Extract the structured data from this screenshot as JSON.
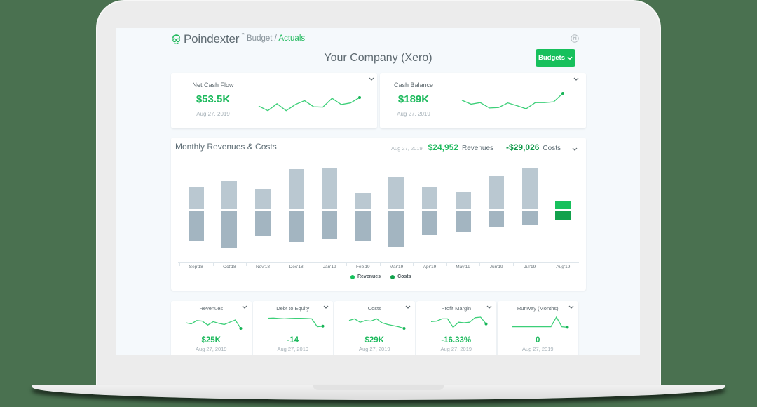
{
  "app": {
    "logo_text": "Poindexter",
    "logo_tm": "™",
    "breadcrumb": {
      "parent": "Budget",
      "separator": " / ",
      "current": "Actuals"
    },
    "page_title": "Your Company (Xero)",
    "budgets_button": "Budgets",
    "accent_color": "#17c05c"
  },
  "top_cards": [
    {
      "title": "Net Cash Flow",
      "value": "$53.5K",
      "date": "Aug 27, 2019",
      "sparkline": [
        0.45,
        0.15,
        0.6,
        0.15,
        0.55,
        0.8,
        0.4,
        0.38,
        0.95,
        0.55,
        0.65,
        1.0
      ]
    },
    {
      "title": "Cash Balance",
      "value": "$189K",
      "date": "Aug 27, 2019",
      "sparkline": [
        0.55,
        0.3,
        0.4,
        0.05,
        0.08,
        0.38,
        0.2,
        0.0,
        0.4,
        0.4,
        0.45,
        1.0
      ]
    }
  ],
  "main_chart_header": {
    "title": "Monthly Revenues & Costs",
    "date": "Aug 27, 2019",
    "revenues_value": "$24,952",
    "revenues_label": "Revenues",
    "costs_value": "-$29,026",
    "costs_label": "Costs"
  },
  "chart_data": {
    "type": "bar",
    "title": "Monthly Revenues & Costs",
    "categories": [
      "Sep'18",
      "Oct'18",
      "Nov'18",
      "Dec'18",
      "Jan'19",
      "Feb'19",
      "Mar'19",
      "Apr'19",
      "May'19",
      "Jun'19",
      "Jul'19",
      "Aug'19"
    ],
    "series": [
      {
        "name": "Revenues",
        "color": "#17c05c",
        "values": [
          32,
          41,
          30,
          58,
          59,
          24,
          47,
          32,
          26,
          48,
          60,
          12
        ]
      },
      {
        "name": "Costs",
        "color": "#12a14c",
        "values": [
          -43,
          -54,
          -36,
          -45,
          -41,
          -44,
          -52,
          -35,
          -30,
          -24,
          -21,
          -13
        ]
      }
    ],
    "bar_colors": {
      "revenues_past": "#bac8d1",
      "costs_past": "#a3b5c1",
      "revenues_current": "#17c05c",
      "costs_current": "#12a14c"
    },
    "xlabel": "",
    "ylabel": "",
    "grid": false,
    "legend_position": "bottom",
    "units": "relative (no y-axis shown)"
  },
  "legend": [
    {
      "label": "Revenues",
      "color": "#17c05c"
    },
    {
      "label": "Costs",
      "color": "#12a14c"
    }
  ],
  "bottom_cards": [
    {
      "title": "Revenues",
      "value": "$25K",
      "date": "Aug 27, 2019",
      "sparkline": [
        0.5,
        0.4,
        0.7,
        0.65,
        0.3,
        0.6,
        0.45,
        0.35,
        0.55,
        0.75,
        0.0
      ]
    },
    {
      "title": "Debt to Equity",
      "value": "-14",
      "date": "Aug 27, 2019",
      "sparkline": [
        0.9,
        0.92,
        0.88,
        0.85,
        0.88,
        0.9,
        0.9,
        0.88,
        0.85,
        0.15,
        0.2
      ]
    },
    {
      "title": "Costs",
      "value": "$29K",
      "date": "Aug 27, 2019",
      "sparkline": [
        0.7,
        0.85,
        0.55,
        0.7,
        0.65,
        0.85,
        0.5,
        0.35,
        0.25,
        0.15,
        0.0
      ]
    },
    {
      "title": "Profit Margin",
      "value": "-16.33%",
      "date": "Aug 27, 2019",
      "sparkline": [
        0.6,
        0.65,
        0.85,
        0.85,
        0.1,
        0.55,
        0.5,
        0.55,
        0.95,
        1.0,
        0.4
      ]
    },
    {
      "title": "Runway (Months)",
      "value": "0",
      "date": "Aug 27, 2019",
      "sparkline": [
        0.15,
        0.15,
        0.15,
        0.15,
        0.15,
        0.15,
        0.15,
        0.15,
        1.0,
        0.15,
        0.1
      ]
    }
  ]
}
